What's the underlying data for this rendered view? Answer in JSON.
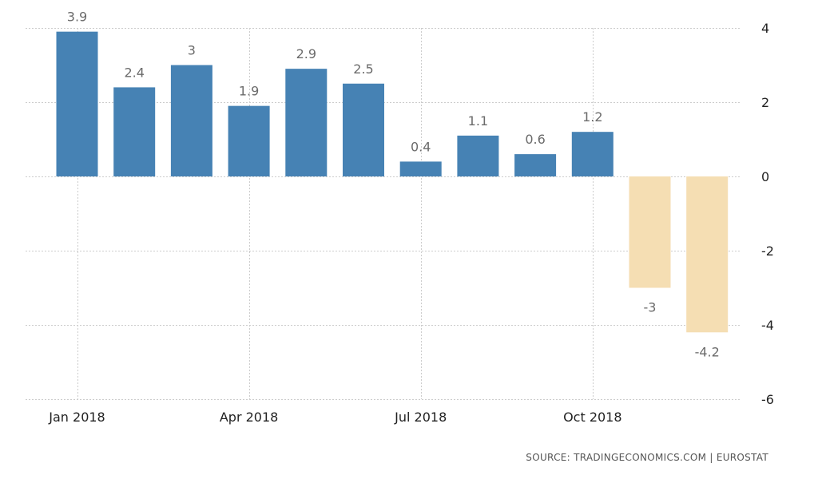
{
  "chart_data": {
    "type": "bar",
    "categories": [
      "Jan 2018",
      "Feb 2018",
      "Mar 2018",
      "Apr 2018",
      "May 2018",
      "Jun 2018",
      "Jul 2018",
      "Aug 2018",
      "Sep 2018",
      "Oct 2018",
      "Nov 2018",
      "Dec 2018"
    ],
    "values": [
      3.9,
      2.4,
      3,
      1.9,
      2.9,
      2.5,
      0.4,
      1.1,
      0.6,
      1.2,
      -3,
      -4.2
    ],
    "value_labels": [
      "3.9",
      "2.4",
      "3",
      "1.9",
      "2.9",
      "2.5",
      "0.4",
      "1.1",
      "0.6",
      "1.2",
      "-3",
      "-4.2"
    ],
    "x_tick_labels": [
      "Jan 2018",
      "Apr 2018",
      "Jul 2018",
      "Oct 2018"
    ],
    "x_tick_positions": [
      0,
      3,
      6,
      9
    ],
    "y_ticks": [
      4,
      2,
      0,
      -2,
      -4,
      -6
    ],
    "y_tick_labels": [
      "4",
      "2",
      "0",
      "-2",
      "-4",
      "-6"
    ],
    "ylim": [
      -6,
      4
    ],
    "y_axis_side": "right",
    "grid": true,
    "title": "",
    "xlabel": "",
    "ylabel": "",
    "colors": {
      "positive": "#4682b4",
      "negative": "#f5deb3"
    }
  },
  "source": "SOURCE: TRADINGECONOMICS.COM  |  EUROSTAT"
}
